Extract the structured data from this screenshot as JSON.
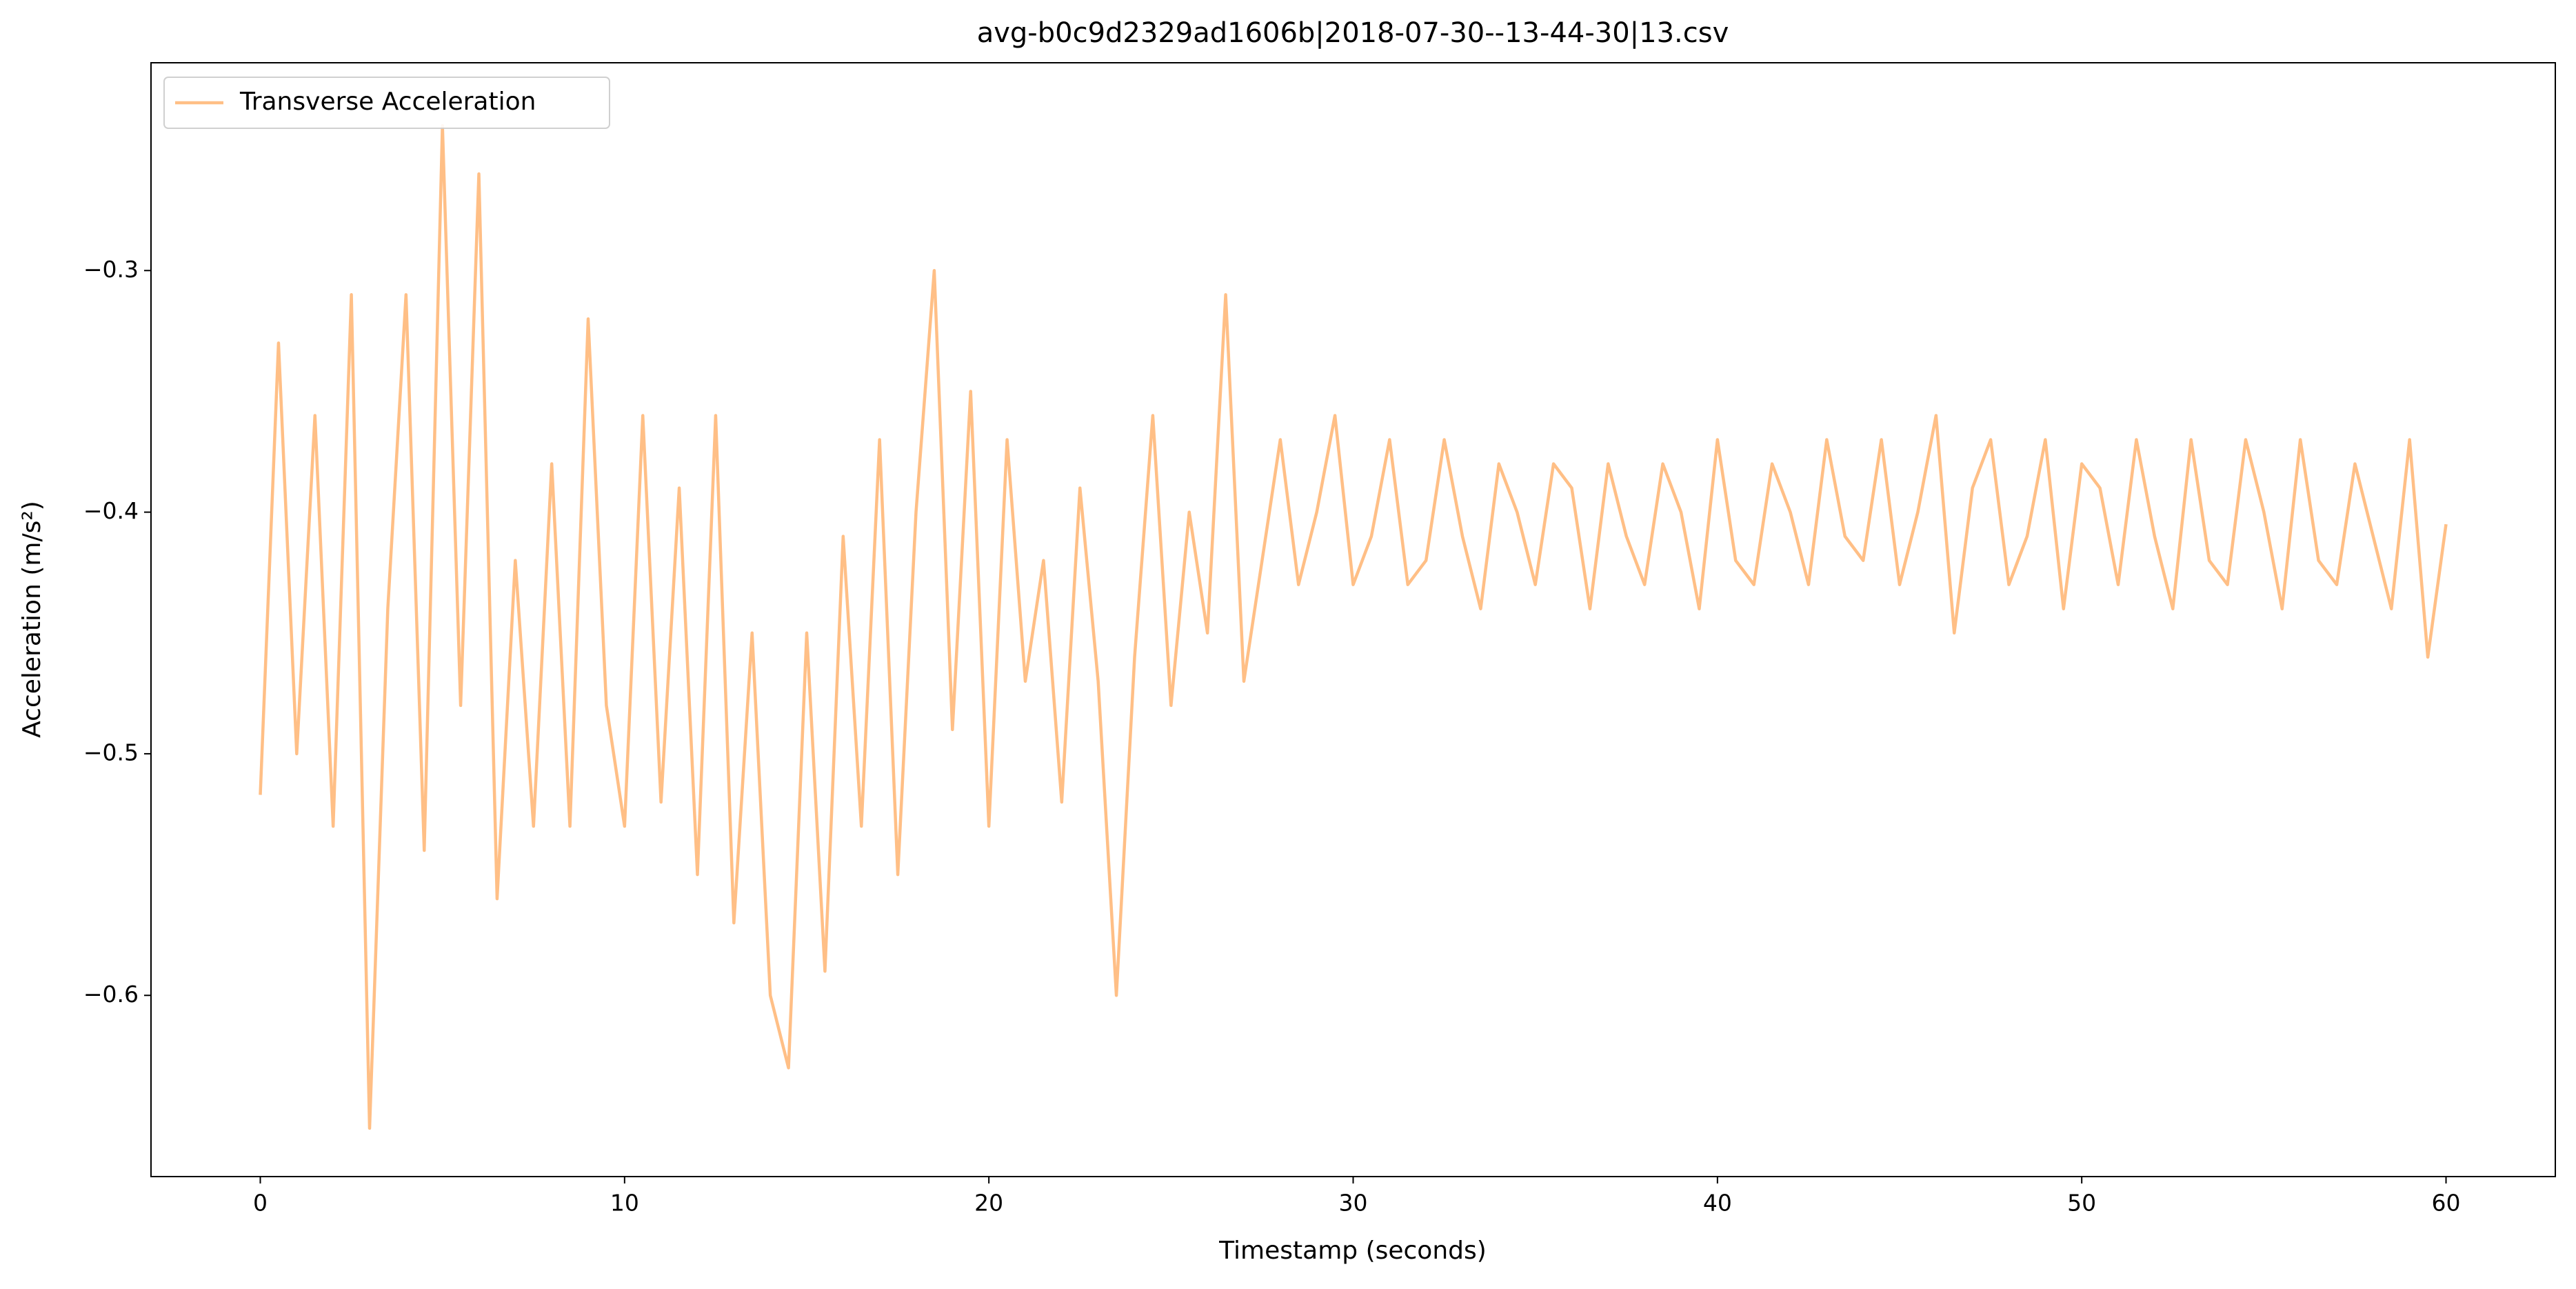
{
  "chart_data": {
    "type": "line",
    "title": "avg-b0c9d2329ad1606b|2018-07-30--13-44-30|13.csv",
    "xlabel": "Timestamp (seconds)",
    "ylabel": "Acceleration (m/s²)",
    "x": [
      0,
      0.5,
      1,
      1.5,
      2,
      2.5,
      3,
      3.5,
      4,
      4.5,
      5,
      5.5,
      6,
      6.5,
      7,
      7.5,
      8,
      8.5,
      9,
      9.5,
      10,
      10.5,
      11,
      11.5,
      12,
      12.5,
      13,
      13.5,
      14,
      14.5,
      15,
      15.5,
      16,
      16.5,
      17,
      17.5,
      18,
      18.5,
      19,
      19.5,
      20,
      20.5,
      21,
      21.5,
      22,
      22.5,
      23,
      23.5,
      24,
      24.5,
      25,
      25.5,
      26,
      26.5,
      27,
      27.5,
      28,
      28.5,
      29,
      29.5,
      30,
      30.5,
      31,
      31.5,
      32,
      32.5,
      33,
      33.5,
      34,
      34.5,
      35,
      35.5,
      36,
      36.5,
      37,
      37.5,
      38,
      38.5,
      39,
      39.5,
      40,
      40.5,
      41,
      41.5,
      42,
      42.5,
      43,
      43.5,
      44,
      44.5,
      45,
      45.5,
      46,
      46.5,
      47,
      47.5,
      48,
      48.5,
      49,
      49.5,
      50,
      50.5,
      51,
      51.5,
      52,
      52.5,
      53,
      53.5,
      54,
      54.5,
      55,
      55.5,
      56,
      56.5,
      57,
      57.5,
      58,
      58.5,
      59,
      59.5,
      60
    ],
    "series": [
      {
        "name": "Transverse Acceleration",
        "color": "#ffbf86",
        "values": [
          -0.517,
          -0.33,
          -0.5,
          -0.36,
          -0.53,
          -0.31,
          -0.655,
          -0.44,
          -0.31,
          -0.54,
          -0.24,
          -0.48,
          -0.26,
          -0.56,
          -0.42,
          -0.53,
          -0.38,
          -0.53,
          -0.32,
          -0.48,
          -0.53,
          -0.36,
          -0.52,
          -0.39,
          -0.55,
          -0.36,
          -0.57,
          -0.45,
          -0.6,
          -0.63,
          -0.45,
          -0.59,
          -0.41,
          -0.53,
          -0.37,
          -0.55,
          -0.4,
          -0.3,
          -0.49,
          -0.35,
          -0.53,
          -0.37,
          -0.47,
          -0.42,
          -0.52,
          -0.39,
          -0.47,
          -0.6,
          -0.46,
          -0.36,
          -0.48,
          -0.4,
          -0.45,
          -0.31,
          -0.47,
          -0.42,
          -0.37,
          -0.43,
          -0.4,
          -0.36,
          -0.43,
          -0.41,
          -0.37,
          -0.43,
          -0.42,
          -0.37,
          -0.41,
          -0.44,
          -0.38,
          -0.4,
          -0.43,
          -0.38,
          -0.39,
          -0.44,
          -0.38,
          -0.41,
          -0.43,
          -0.38,
          -0.4,
          -0.44,
          -0.37,
          -0.42,
          -0.43,
          -0.38,
          -0.4,
          -0.43,
          -0.37,
          -0.41,
          -0.42,
          -0.37,
          -0.43,
          -0.4,
          -0.36,
          -0.45,
          -0.39,
          -0.37,
          -0.43,
          -0.41,
          -0.37,
          -0.44,
          -0.38,
          -0.39,
          -0.43,
          -0.37,
          -0.41,
          -0.44,
          -0.37,
          -0.42,
          -0.43,
          -0.37,
          -0.4,
          -0.44,
          -0.37,
          -0.42,
          -0.43,
          -0.38,
          -0.41,
          -0.44,
          -0.37,
          -0.46,
          -0.405
        ]
      }
    ],
    "xlim": [
      -3,
      63
    ],
    "ylim": [
      -0.675,
      -0.214
    ],
    "xticks": [
      0,
      10,
      20,
      30,
      40,
      50,
      60
    ],
    "yticks": [
      {
        "value": -0.6,
        "label": "−0.6"
      },
      {
        "value": -0.5,
        "label": "−0.5"
      },
      {
        "value": -0.4,
        "label": "−0.4"
      },
      {
        "value": -0.3,
        "label": "−0.3"
      }
    ],
    "grid": false,
    "legend": "upper left"
  }
}
